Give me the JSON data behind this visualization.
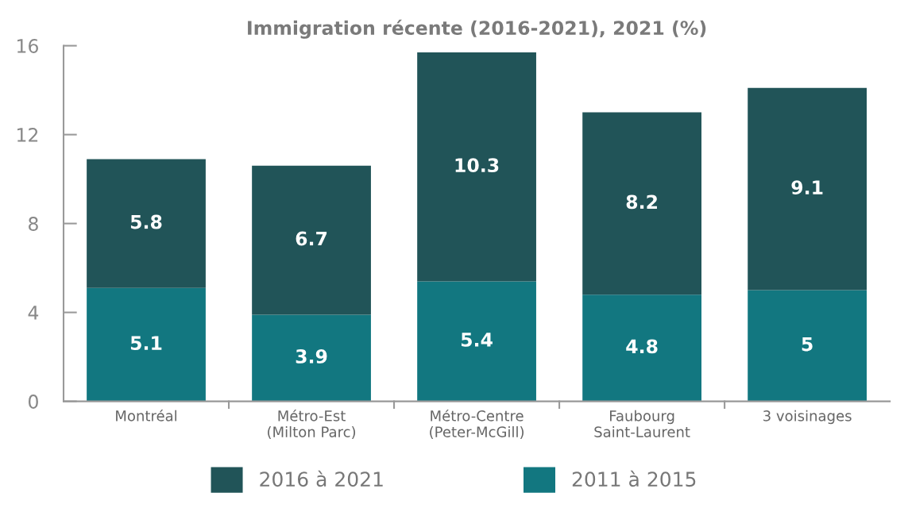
{
  "chart_data": {
    "type": "bar",
    "title": "Immigration récente (2016-2021), 2021 (%)",
    "categories": [
      "Montréal",
      "Métro-Est\n(Milton Parc)",
      "Métro-Centre\n(Peter-McGill)",
      "Faubourg\nSaint-Laurent",
      "3 voisinages"
    ],
    "stacked": true,
    "series": [
      {
        "name": "2011 à 2015",
        "color": "#127780",
        "values": [
          5.1,
          3.9,
          5.4,
          4.8,
          5
        ]
      },
      {
        "name": "2016 à 2021",
        "color": "#215458",
        "values": [
          5.8,
          6.7,
          10.3,
          8.2,
          9.1
        ]
      }
    ],
    "ylim": [
      0,
      16
    ],
    "yticks": [
      0,
      4,
      8,
      12,
      16
    ],
    "grid": false,
    "legend": "bottom",
    "data_labels": true
  }
}
